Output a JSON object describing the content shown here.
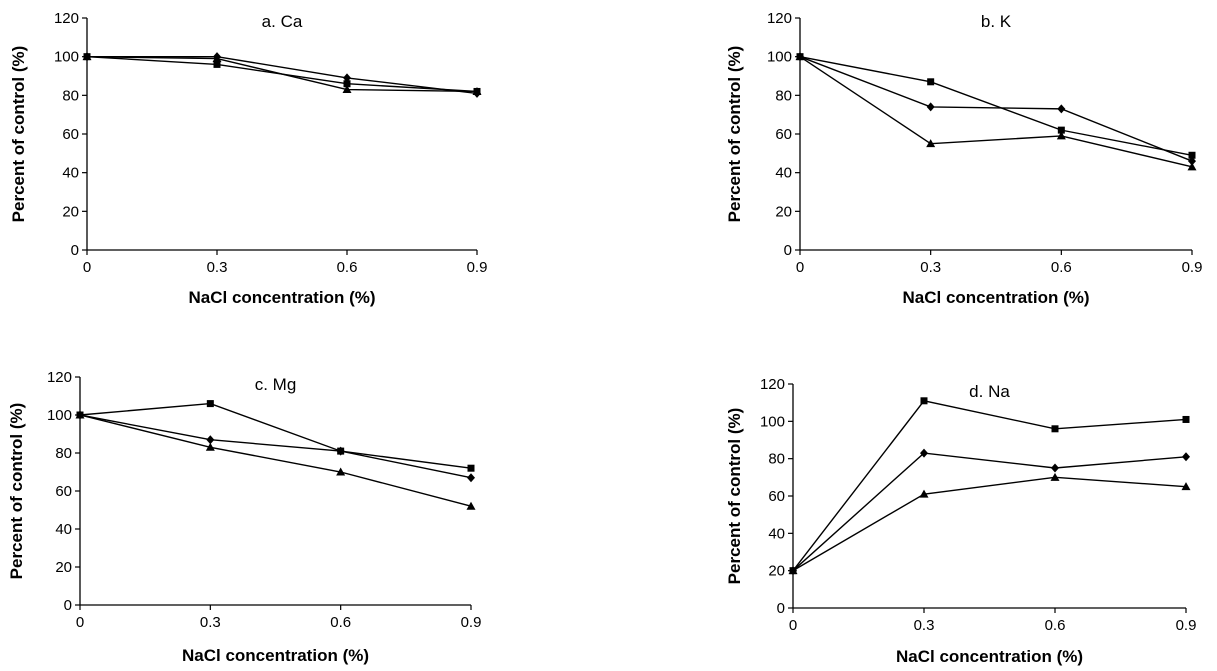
{
  "chart_data": [
    {
      "type": "line",
      "title": "a. Ca",
      "xlabel": "NaCl concentration (%)",
      "ylabel": "Percent of control (%)",
      "x": [
        0,
        0.3,
        0.6,
        0.9
      ],
      "x_tick_labels": [
        "0",
        "0.3",
        "0.6",
        "0.9"
      ],
      "ylim": [
        0,
        120
      ],
      "y_ticks": [
        0,
        20,
        40,
        60,
        80,
        100,
        120
      ],
      "grid": false,
      "series": [
        {
          "marker": "square",
          "values": [
            100,
            96,
            86,
            82
          ]
        },
        {
          "marker": "diamond",
          "values": [
            100,
            100,
            89,
            81
          ]
        },
        {
          "marker": "triangle",
          "values": [
            100,
            99,
            83,
            82
          ]
        }
      ]
    },
    {
      "type": "line",
      "title": "b. K",
      "xlabel": "NaCl concentration (%)",
      "ylabel": "Percent of control (%)",
      "x": [
        0,
        0.3,
        0.6,
        0.9
      ],
      "x_tick_labels": [
        "0",
        "0.3",
        "0.6",
        "0.9"
      ],
      "ylim": [
        0,
        120
      ],
      "y_ticks": [
        0,
        20,
        40,
        60,
        80,
        100,
        120
      ],
      "grid": false,
      "series": [
        {
          "marker": "square",
          "values": [
            100,
            87,
            62,
            49
          ]
        },
        {
          "marker": "diamond",
          "values": [
            100,
            74,
            73,
            46
          ]
        },
        {
          "marker": "triangle",
          "values": [
            100,
            55,
            59,
            43
          ]
        }
      ]
    },
    {
      "type": "line",
      "title": "c. Mg",
      "xlabel": "NaCl concentration (%)",
      "ylabel": "Percent of control (%)",
      "x": [
        0,
        0.3,
        0.6,
        0.9
      ],
      "x_tick_labels": [
        "0",
        "0.3",
        "0.6",
        "0.9"
      ],
      "ylim": [
        0,
        120
      ],
      "y_ticks": [
        0,
        20,
        40,
        60,
        80,
        100,
        120
      ],
      "grid": false,
      "series": [
        {
          "marker": "square",
          "values": [
            100,
            106,
            81,
            72
          ]
        },
        {
          "marker": "diamond",
          "values": [
            100,
            87,
            81,
            67
          ]
        },
        {
          "marker": "triangle",
          "values": [
            100,
            83,
            70,
            52
          ]
        }
      ]
    },
    {
      "type": "line",
      "title": "d. Na",
      "xlabel": "NaCl concentration (%)",
      "ylabel": "Percent of control (%)",
      "x": [
        0,
        0.3,
        0.6,
        0.9
      ],
      "x_tick_labels": [
        "0",
        "0.3",
        "0.6",
        "0.9"
      ],
      "ylim": [
        0,
        120
      ],
      "y_ticks": [
        0,
        20,
        40,
        60,
        80,
        100,
        120
      ],
      "grid": false,
      "series": [
        {
          "marker": "square",
          "values": [
            20,
            111,
            96,
            101
          ]
        },
        {
          "marker": "diamond",
          "values": [
            20,
            83,
            75,
            81
          ]
        },
        {
          "marker": "triangle",
          "values": [
            20,
            61,
            70,
            65
          ]
        }
      ]
    }
  ]
}
